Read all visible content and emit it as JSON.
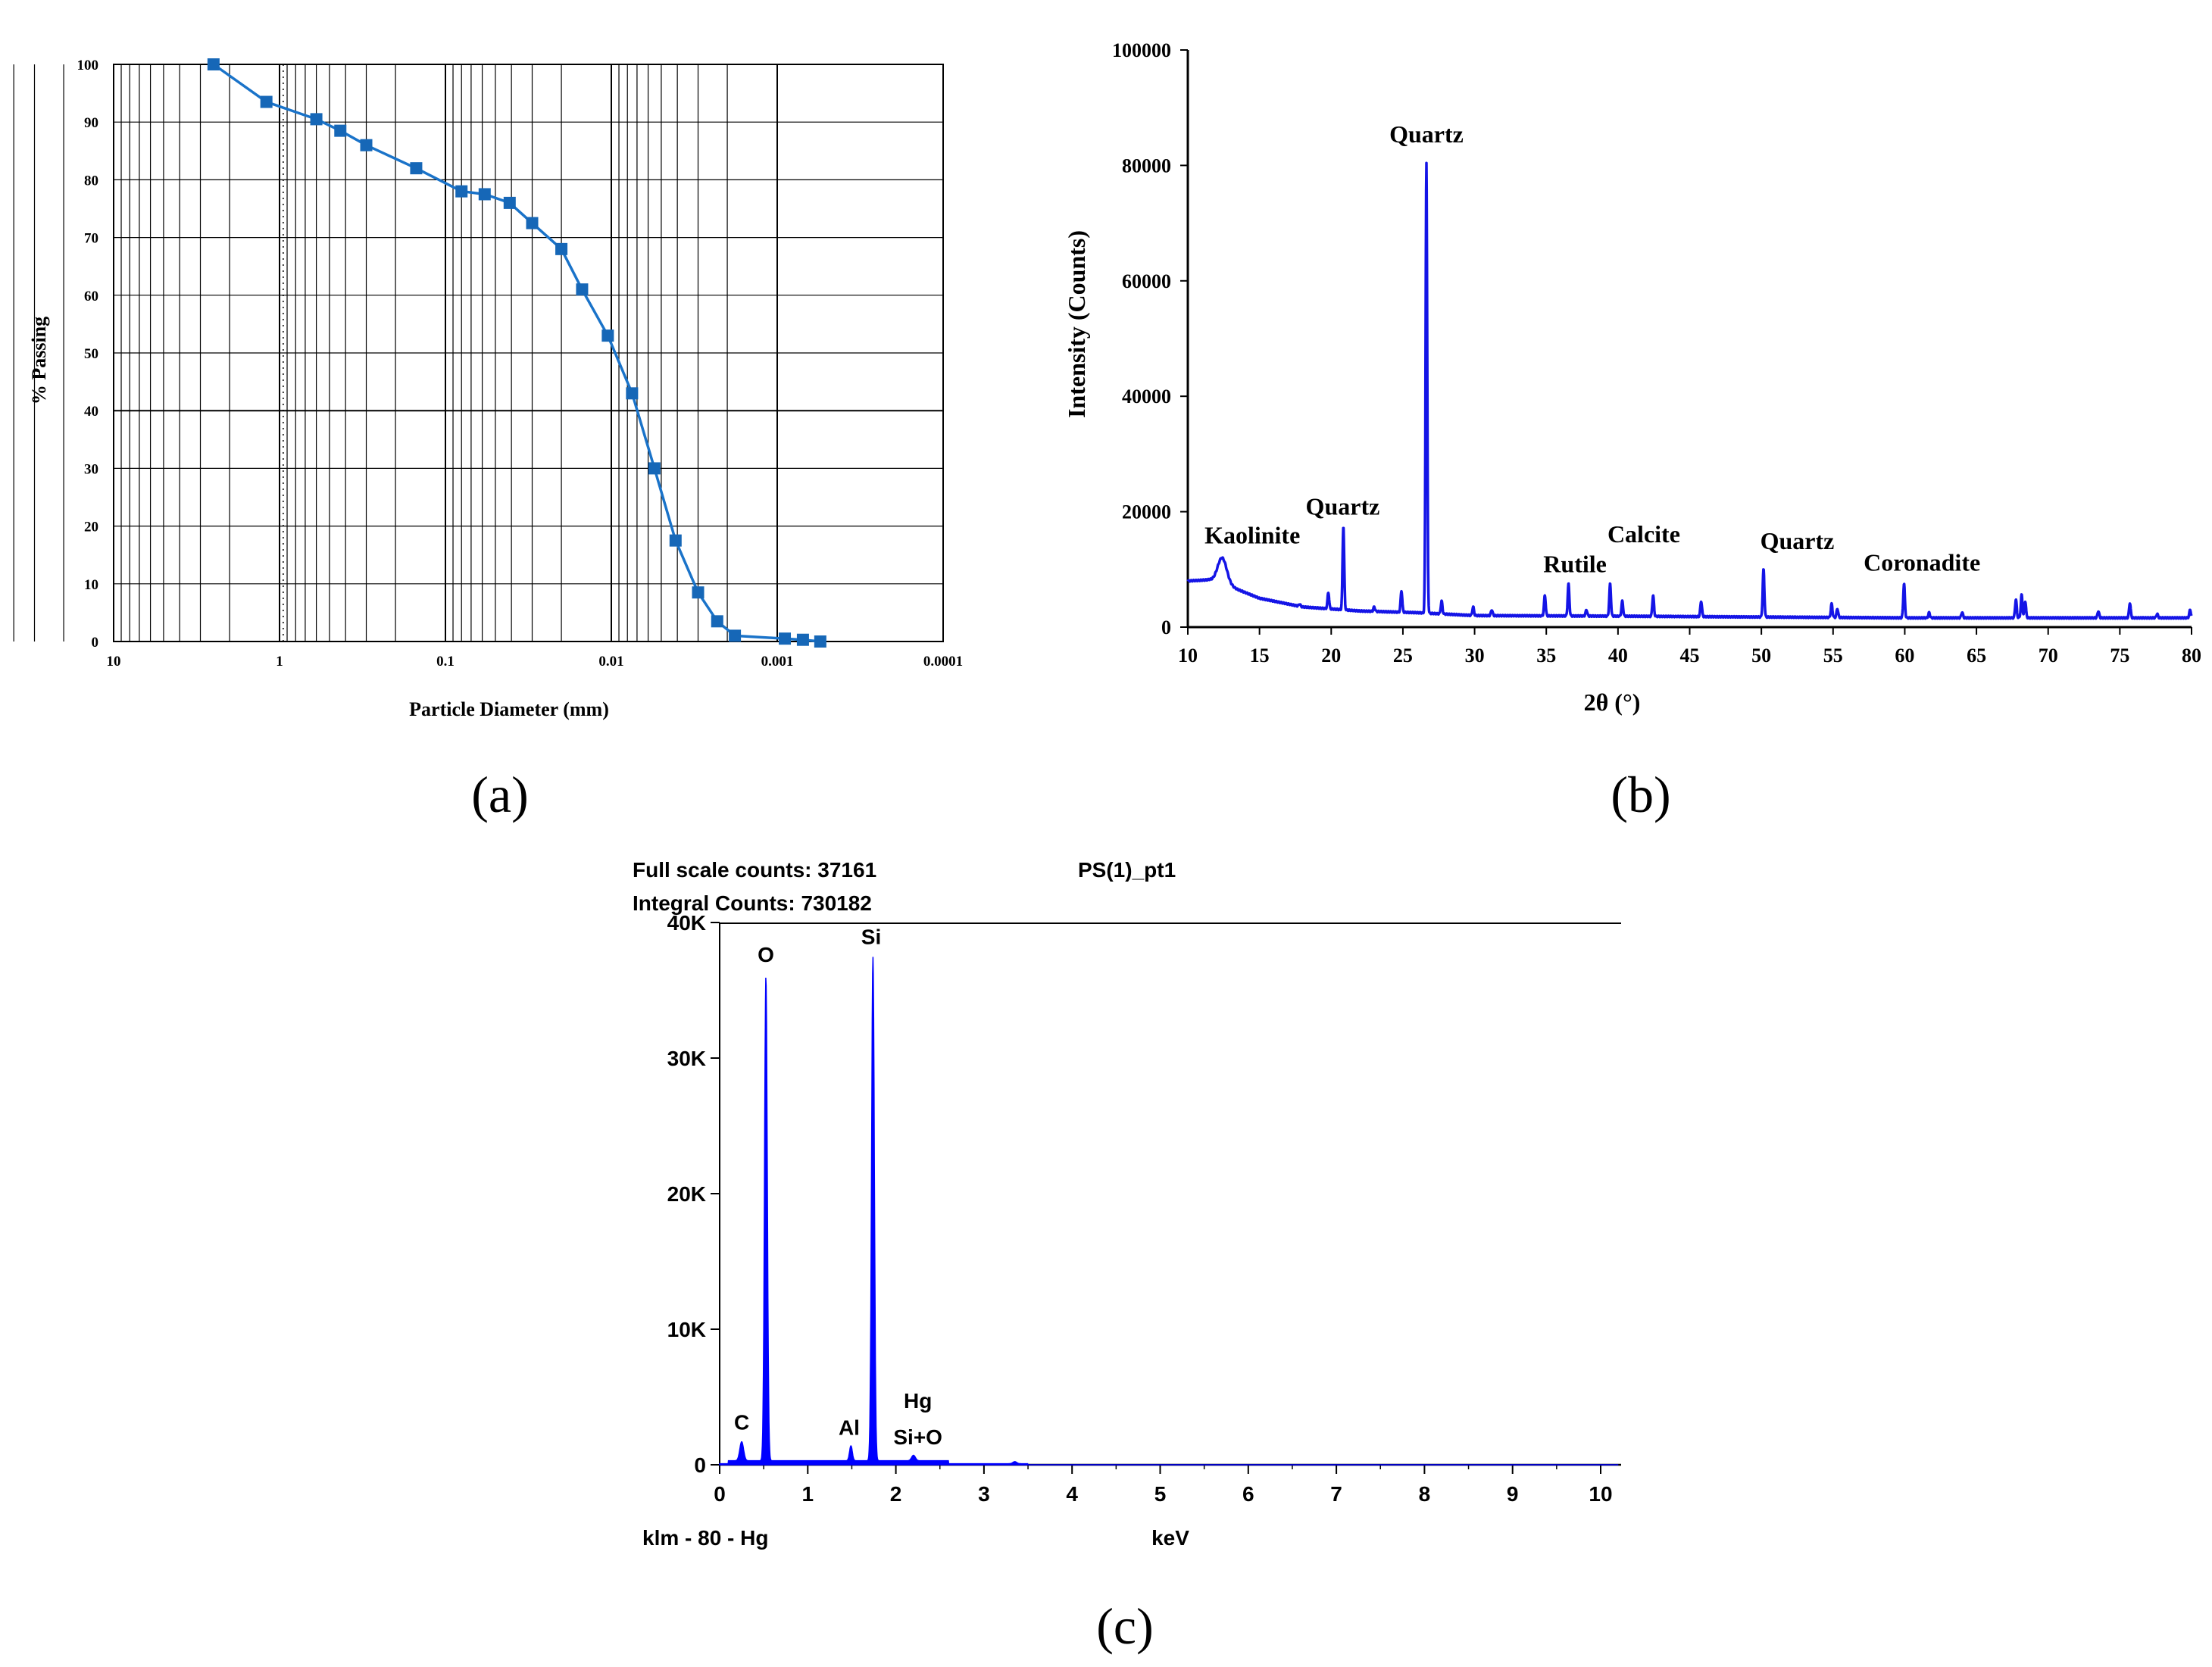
{
  "panel_labels": [
    "(a)",
    "(b)",
    "(c)"
  ],
  "colors": {
    "psd_line": "#1a73c9",
    "psd_marker": "#1667b7",
    "xrd_line": "#1414e6",
    "eds_fill": "#0000ff"
  },
  "chart_data": [
    {
      "type": "line",
      "panel": "a",
      "xlabel": "Particle Diameter (mm)",
      "ylabel": "% Passing",
      "x_scale": "log",
      "x_reversed": true,
      "xlim": [
        10,
        0.0001
      ],
      "ylim": [
        0,
        100
      ],
      "x_ticks": [
        "10",
        "1",
        "0.1",
        "0.01",
        "0.001",
        "0.0001"
      ],
      "y_ticks": [
        "0",
        "10",
        "20",
        "30",
        "40",
        "50",
        "60",
        "70",
        "80",
        "90",
        "100"
      ],
      "grid": true,
      "markers": "square",
      "x": [
        2.5,
        1.2,
        0.6,
        0.43,
        0.3,
        0.15,
        0.08,
        0.058,
        0.041,
        0.03,
        0.02,
        0.015,
        0.0105,
        0.0075,
        0.0055,
        0.0041,
        0.003,
        0.0023,
        0.0018,
        0.0009,
        0.0007,
        0.00055
      ],
      "y": [
        100,
        93.5,
        90.5,
        88.5,
        86,
        82,
        78,
        77.5,
        76,
        72.5,
        68,
        61,
        53,
        43,
        30,
        17.5,
        8.5,
        3.5,
        1,
        0.5,
        0.3,
        0
      ]
    },
    {
      "type": "line",
      "panel": "b",
      "xlabel": "2θ (°)",
      "ylabel": "Intensity (Counts)",
      "xlim": [
        10,
        80
      ],
      "ylim": [
        0,
        100000
      ],
      "x_ticks": [
        "10",
        "15",
        "20",
        "25",
        "30",
        "35",
        "40",
        "45",
        "50",
        "55",
        "60",
        "65",
        "70",
        "75",
        "80"
      ],
      "y_ticks": [
        "0",
        "20000",
        "40000",
        "60000",
        "80000",
        "100000"
      ],
      "baseline": [
        [
          10,
          8000
        ],
        [
          11.5,
          8200
        ],
        [
          13,
          7000
        ],
        [
          15,
          5000
        ],
        [
          18,
          3500
        ],
        [
          22,
          2800
        ],
        [
          26,
          2500
        ],
        [
          30,
          2000
        ],
        [
          40,
          1900
        ],
        [
          60,
          1600
        ],
        [
          80,
          1600
        ]
      ],
      "peaks": [
        {
          "x": 12.4,
          "y": 12000
        },
        {
          "x": 17.8,
          "y": 4000
        },
        {
          "x": 19.8,
          "y": 6000
        },
        {
          "x": 20.85,
          "y": 17500
        },
        {
          "x": 23.0,
          "y": 3500
        },
        {
          "x": 24.9,
          "y": 6300
        },
        {
          "x": 26.64,
          "y": 80500
        },
        {
          "x": 27.7,
          "y": 4500
        },
        {
          "x": 29.9,
          "y": 3500
        },
        {
          "x": 31.2,
          "y": 3000
        },
        {
          "x": 34.9,
          "y": 5500
        },
        {
          "x": 36.55,
          "y": 7500
        },
        {
          "x": 37.8,
          "y": 3000
        },
        {
          "x": 39.45,
          "y": 7500
        },
        {
          "x": 40.3,
          "y": 4500
        },
        {
          "x": 42.45,
          "y": 5500
        },
        {
          "x": 45.8,
          "y": 4500
        },
        {
          "x": 50.15,
          "y": 10000
        },
        {
          "x": 54.9,
          "y": 4000
        },
        {
          "x": 55.3,
          "y": 3200
        },
        {
          "x": 59.95,
          "y": 7500
        },
        {
          "x": 61.7,
          "y": 2500
        },
        {
          "x": 64.0,
          "y": 2600
        },
        {
          "x": 67.75,
          "y": 4800
        },
        {
          "x": 68.15,
          "y": 5600
        },
        {
          "x": 68.4,
          "y": 4500
        },
        {
          "x": 73.5,
          "y": 2800
        },
        {
          "x": 75.7,
          "y": 4200
        },
        {
          "x": 77.6,
          "y": 2300
        },
        {
          "x": 79.9,
          "y": 3000
        }
      ],
      "annotations": [
        {
          "text": "Quartz",
          "x": 26.64,
          "y": 84000
        },
        {
          "text": "Quartz",
          "x": 20.8,
          "y": 19500
        },
        {
          "text": "Kaolinite",
          "x": 14.5,
          "y": 14500
        },
        {
          "text": "Rutile",
          "x": 37.0,
          "y": 9500
        },
        {
          "text": "Calcite",
          "x": 41.8,
          "y": 14700
        },
        {
          "text": "Quartz",
          "x": 52.5,
          "y": 13500
        },
        {
          "text": "Coronadite",
          "x": 61.2,
          "y": 9800
        }
      ]
    },
    {
      "type": "area",
      "panel": "c",
      "header_left_1": "Full scale counts: 37161",
      "header_left_2": "Integral Counts: 730182",
      "header_right": "PS(1)_pt1",
      "xlabel": "keV",
      "footer_left": "klm - 80 - Hg",
      "xlim": [
        0,
        10.2
      ],
      "ylim": [
        0,
        41000
      ],
      "x_ticks": [
        "0",
        "1",
        "2",
        "3",
        "4",
        "5",
        "6",
        "7",
        "8",
        "9",
        "10"
      ],
      "y_ticks": [
        "0",
        "10K",
        "20K",
        "30K",
        "40K"
      ],
      "peaks": [
        {
          "x": 0.25,
          "y": 1400
        },
        {
          "x": 0.525,
          "y": 35700
        },
        {
          "x": 1.49,
          "y": 1100
        },
        {
          "x": 1.74,
          "y": 37161
        },
        {
          "x": 2.2,
          "y": 400
        },
        {
          "x": 3.35,
          "y": 150
        }
      ],
      "peak_labels": [
        {
          "text": "C",
          "x": 0.25,
          "y": 2600
        },
        {
          "text": "O",
          "x": 0.525,
          "y": 37100
        },
        {
          "text": "Al",
          "x": 1.47,
          "y": 2200
        },
        {
          "text": "Si",
          "x": 1.72,
          "y": 38400
        },
        {
          "text": "Hg",
          "x": 2.25,
          "y": 4200
        },
        {
          "text": "Si+O",
          "x": 2.25,
          "y": 1500
        }
      ]
    }
  ]
}
